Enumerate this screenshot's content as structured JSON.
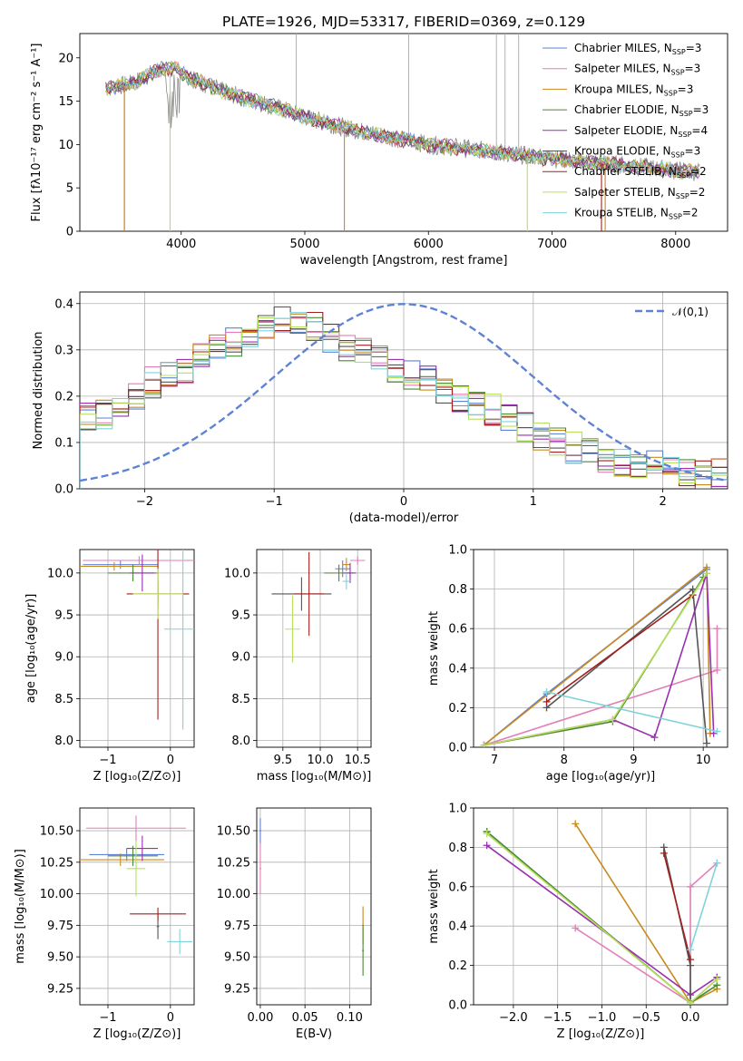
{
  "title": "PLATE=1926, MJD=53317, FIBERID=0369, z=0.129",
  "palette": [
    "#5e82d6",
    "#e27fb8",
    "#c98a1f",
    "#4a8a35",
    "#9a2fb0",
    "#555555",
    "#a32020",
    "#b6e05a",
    "#7fd3db"
  ],
  "models": [
    {
      "name": "Chabrier MILES",
      "nssp": "3"
    },
    {
      "name": "Salpeter MILES",
      "nssp": "3"
    },
    {
      "name": "Kroupa MILES",
      "nssp": "3"
    },
    {
      "name": "Chabrier ELODIE",
      "nssp": "3"
    },
    {
      "name": "Salpeter ELODIE",
      "nssp": "4"
    },
    {
      "name": "Kroupa ELODIE",
      "nssp": "3"
    },
    {
      "name": "Chabrier STELIB",
      "nssp": "2"
    },
    {
      "name": "Salpeter STELIB",
      "nssp": "2"
    },
    {
      "name": "Kroupa STELIB",
      "nssp": "2"
    }
  ],
  "nssp_prefix": "N",
  "nssp_sub": "SSP",
  "chart_data": [
    {
      "id": "spectrum",
      "type": "line",
      "xlabel": "wavelength [Angstrom, rest frame]",
      "ylabel": "Flux [fλ10⁻¹⁷ erg cm⁻² s⁻¹ A⁻¹]",
      "xlim": [
        3180,
        8420
      ],
      "ylim": [
        0,
        22.8
      ],
      "xticks": [
        4000,
        5000,
        6000,
        7000,
        8000
      ],
      "yticks": [
        0,
        5,
        10,
        15,
        20
      ],
      "continuum": {
        "x": [
          3390,
          3600,
          3800,
          3950,
          4100,
          4400,
          4700,
          5000,
          5300,
          5600,
          6000,
          6400,
          6800,
          7200,
          7600,
          8000,
          8200
        ],
        "y": [
          16.5,
          17.0,
          18.5,
          18.8,
          17.5,
          15.8,
          14.6,
          13.2,
          12.0,
          11.1,
          10.0,
          9.4,
          8.7,
          8.1,
          7.6,
          7.0,
          6.8
        ]
      },
      "grid": false
    },
    {
      "id": "residuals",
      "type": "line",
      "xlabel": "(data-model)/error",
      "ylabel": "Normed distribution",
      "xlim": [
        -2.5,
        2.5
      ],
      "ylim": [
        0,
        0.425
      ],
      "xticks": [
        -2,
        -1,
        0,
        1,
        2
      ],
      "yticks": [
        0,
        0.1,
        0.2,
        0.3,
        0.4
      ],
      "gaussian_label": "𝒩(0,1)",
      "hist_center": [
        0.15,
        0.16,
        0.18,
        0.2,
        0.23,
        0.25,
        0.26,
        0.28,
        0.3,
        0.32,
        0.33,
        0.35,
        0.36,
        0.37,
        0.35,
        0.33,
        0.31,
        0.3,
        0.28,
        0.26,
        0.25,
        0.24,
        0.22,
        0.2,
        0.18,
        0.17,
        0.15,
        0.13,
        0.11,
        0.1,
        0.09,
        0.08,
        0.07,
        0.06,
        0.05,
        0.05,
        0.04,
        0.035,
        0.03,
        0.03
      ],
      "grid": true
    },
    {
      "id": "age_vs_Z",
      "type": "scatter",
      "xlabel": "Z [log₁₀(Z/Z⊙)]",
      "ylabel": "age  [log₁₀(age/yr)]",
      "xlim": [
        -1.45,
        0.38
      ],
      "ylim": [
        7.92,
        10.28
      ],
      "xticks": [
        -1,
        0
      ],
      "yticks": [
        8.0,
        8.5,
        9.0,
        9.5,
        10.0
      ],
      "grid": true,
      "points": [
        [
          -0.8,
          10.1,
          0.6,
          0.05
        ],
        [
          -0.5,
          10.15,
          0.9,
          0.05
        ],
        [
          -0.9,
          10.08,
          0.7,
          0.05
        ],
        [
          -0.6,
          10.0,
          0.4,
          0.1
        ],
        [
          -0.45,
          10.0,
          0.2,
          0.22
        ],
        [
          -0.2,
          9.75,
          0.02,
          0.15
        ],
        [
          -0.2,
          9.75,
          0.5,
          1.5
        ],
        [
          -0.2,
          9.75,
          0.4,
          0.3
        ],
        [
          0.2,
          9.33,
          0.3,
          1.2
        ]
      ]
    },
    {
      "id": "age_vs_mass",
      "type": "scatter",
      "xlabel": "mass [log₁₀(M/M⊙)]",
      "ylabel": "",
      "xlim": [
        9.15,
        10.68
      ],
      "ylim": [
        7.92,
        10.28
      ],
      "xticks": [
        9.5,
        10.0,
        10.5
      ],
      "yticks": [
        8.0,
        8.5,
        9.0,
        9.5,
        10.0
      ],
      "grid": true,
      "points": [
        [
          10.3,
          10.05,
          0.1,
          0.1
        ],
        [
          10.5,
          10.15,
          0.1,
          0.05
        ],
        [
          10.35,
          10.1,
          0.05,
          0.08
        ],
        [
          10.25,
          10.0,
          0.2,
          0.1
        ],
        [
          10.4,
          10.0,
          0.08,
          0.12
        ],
        [
          9.75,
          9.75,
          0.4,
          0.2
        ],
        [
          9.85,
          9.75,
          0.2,
          0.5
        ],
        [
          9.63,
          9.33,
          0.1,
          0.4
        ],
        [
          10.35,
          9.9,
          0.05,
          0.1
        ]
      ]
    },
    {
      "id": "weight_vs_age",
      "type": "line",
      "xlabel": "age  [log₁₀(age/yr)]",
      "ylabel": "mass weight",
      "xlim": [
        6.7,
        10.35
      ],
      "ylim": [
        0,
        1
      ],
      "xticks": [
        7,
        8,
        9,
        10
      ],
      "yticks": [
        0,
        0.2,
        0.4,
        0.6,
        0.8,
        1.0
      ],
      "grid": true,
      "series": [
        {
          "x": [
            6.85,
            7.75,
            10.05
          ],
          "y": [
            0.01,
            0.27,
            0.9
          ]
        },
        {
          "x": [
            6.85,
            10.2,
            10.2
          ],
          "y": [
            0.01,
            0.39,
            0.6
          ]
        },
        {
          "x": [
            6.85,
            10.05,
            10.1
          ],
          "y": [
            0.01,
            0.91,
            0.07
          ]
        },
        {
          "x": [
            6.85,
            8.7,
            10.0
          ],
          "y": [
            0.01,
            0.13,
            0.86
          ]
        },
        {
          "x": [
            6.85,
            8.7,
            9.3,
            10.05,
            10.15
          ],
          "y": [
            0.01,
            0.14,
            0.05,
            0.88,
            0.07
          ]
        },
        {
          "x": [
            7.75,
            9.85,
            10.05
          ],
          "y": [
            0.2,
            0.8,
            0.02
          ]
        },
        {
          "x": [
            7.75,
            9.85
          ],
          "y": [
            0.23,
            0.77
          ]
        },
        {
          "x": [
            6.85,
            8.7,
            10.05
          ],
          "y": [
            0.01,
            0.14,
            0.88
          ]
        },
        {
          "x": [
            7.75,
            10.2
          ],
          "y": [
            0.28,
            0.08
          ]
        }
      ]
    },
    {
      "id": "mass_vs_Z",
      "type": "scatter",
      "xlabel": "Z [log₁₀(Z/Z⊙)]",
      "ylabel": "mass [log₁₀(M/M⊙)]",
      "xlim": [
        -1.45,
        0.38
      ],
      "ylim": [
        9.12,
        10.68
      ],
      "xticks": [
        -1,
        0
      ],
      "yticks": [
        9.25,
        9.5,
        9.75,
        10.0,
        10.25,
        10.5
      ],
      "grid": true,
      "points": [
        [
          -0.7,
          10.31,
          0.6,
          0.05
        ],
        [
          -0.55,
          10.52,
          0.8,
          0.1
        ],
        [
          -0.8,
          10.27,
          0.7,
          0.05
        ],
        [
          -0.6,
          10.3,
          0.4,
          0.08
        ],
        [
          -0.45,
          10.36,
          0.25,
          0.1
        ],
        [
          -0.2,
          9.74,
          0.02,
          0.1
        ],
        [
          -0.2,
          9.84,
          0.45,
          0.05
        ],
        [
          -0.55,
          10.2,
          0.15,
          0.22
        ],
        [
          0.15,
          9.62,
          0.2,
          0.1
        ]
      ]
    },
    {
      "id": "mass_vs_EBV",
      "type": "scatter",
      "xlabel": "E(B-V)",
      "ylabel": "",
      "xlim": [
        -0.004,
        0.124
      ],
      "ylim": [
        9.12,
        10.68
      ],
      "xticks": [
        0.0,
        0.05,
        0.1
      ],
      "yticks": [
        9.25,
        9.5,
        9.75,
        10.0,
        10.25,
        10.5
      ],
      "grid": true,
      "points": [
        [
          0.0,
          10.5,
          0.001,
          0.1
        ],
        [
          0.0,
          10.2,
          0.001,
          0.2
        ],
        [
          0.115,
          9.75,
          0.001,
          0.15
        ],
        [
          0.115,
          9.55,
          0.001,
          0.2
        ]
      ]
    },
    {
      "id": "weight_vs_Z",
      "type": "line",
      "xlabel": "Z [log₁₀(Z/Z⊙)]",
      "ylabel": "mass weight",
      "xlim": [
        -2.45,
        0.42
      ],
      "ylim": [
        0,
        1
      ],
      "xticks": [
        -2.0,
        -1.5,
        -1.0,
        -0.5,
        0.0
      ],
      "yticks": [
        0,
        0.2,
        0.4,
        0.6,
        0.8,
        1.0
      ],
      "grid": true,
      "series": [
        {
          "x": [
            -2.3,
            0.0,
            0.3
          ],
          "y": [
            0.88,
            0.01,
            0.13
          ]
        },
        {
          "x": [
            -1.3,
            0.0,
            0.0,
            0.3
          ],
          "y": [
            0.39,
            0.01,
            0.6,
            0.72
          ]
        },
        {
          "x": [
            -1.3,
            0.0,
            0.3
          ],
          "y": [
            0.92,
            0.01,
            0.08
          ]
        },
        {
          "x": [
            -2.3,
            0.0,
            0.3
          ],
          "y": [
            0.88,
            0.01,
            0.1
          ]
        },
        {
          "x": [
            -2.3,
            0.0,
            0.3
          ],
          "y": [
            0.81,
            0.05,
            0.14
          ]
        },
        {
          "x": [
            -0.3,
            0.0,
            0.0
          ],
          "y": [
            0.8,
            0.2,
            0.02
          ]
        },
        {
          "x": [
            -0.3,
            0.0
          ],
          "y": [
            0.77,
            0.23
          ]
        },
        {
          "x": [
            -2.3,
            0.0,
            0.3
          ],
          "y": [
            0.87,
            0.01,
            0.13
          ]
        },
        {
          "x": [
            0.0,
            0.3
          ],
          "y": [
            0.28,
            0.72
          ]
        }
      ]
    }
  ]
}
